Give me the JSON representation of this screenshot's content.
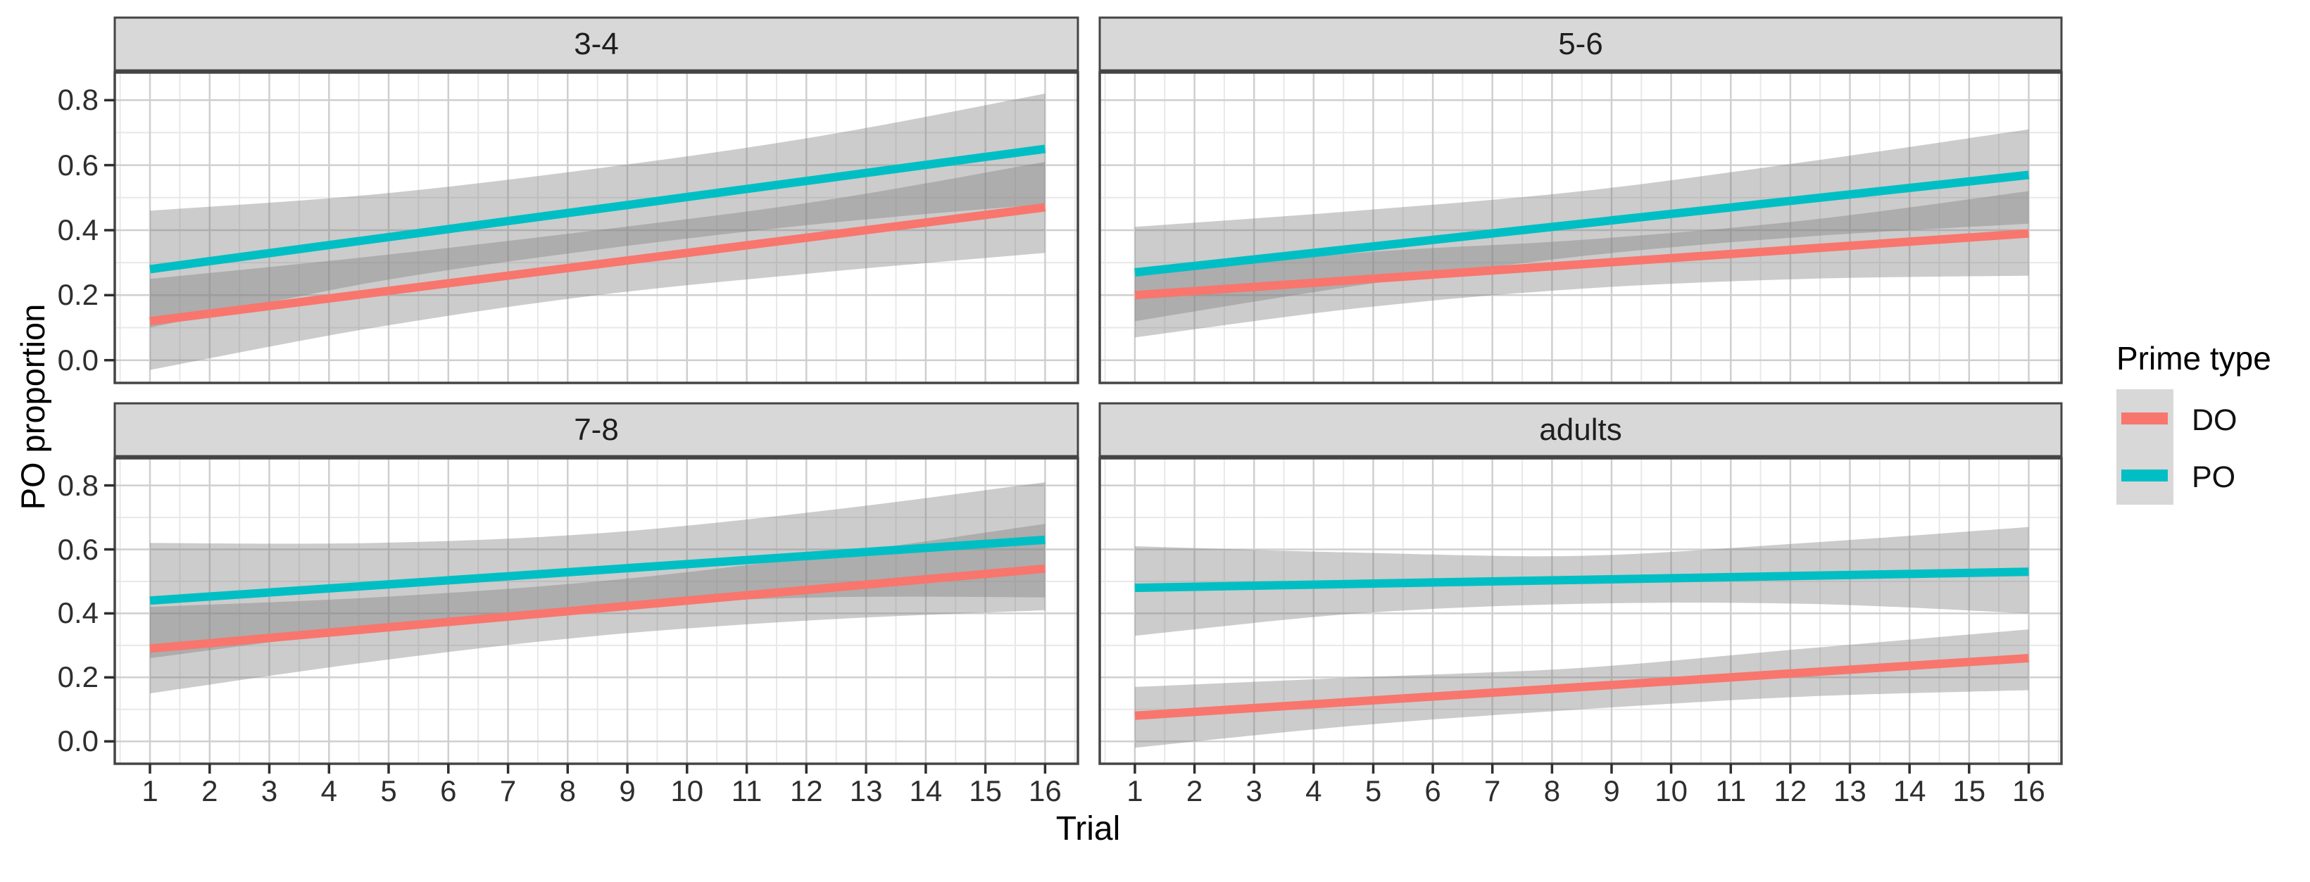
{
  "figure": {
    "y_axis_title": "PO proportion",
    "x_axis_title": "Trial",
    "legend": {
      "title": "Prime type",
      "entries": [
        {
          "label": "DO",
          "color": "#F8766D"
        },
        {
          "label": "PO",
          "color": "#00BFC4"
        }
      ]
    }
  },
  "chart_data": {
    "type": "line",
    "title": "",
    "xlabel": "Trial",
    "ylabel": "PO proportion",
    "legend_title": "Prime type",
    "legend_position": "right",
    "grid": "major+minor",
    "x_ticks": [
      1,
      2,
      3,
      4,
      5,
      6,
      7,
      8,
      9,
      10,
      11,
      12,
      13,
      14,
      15,
      16
    ],
    "y_ticks": [
      "0.0",
      "0.2",
      "0.4",
      "0.6",
      "0.8"
    ],
    "y_tick_values": [
      0.0,
      0.2,
      0.4,
      0.6,
      0.8
    ],
    "x_domain": [
      0.41,
      16.55
    ],
    "y_domain": [
      -0.07,
      0.885
    ],
    "ribbon_color": "#808080",
    "ribbon_opacity": 0.4,
    "panels": [
      {
        "label": "3-4",
        "series": [
          {
            "name": "DO",
            "line_x": [
              1,
              16
            ],
            "line_y": [
              0.12,
              0.47
            ],
            "ribbon_x": [
              1,
              4.75,
              8.5,
              12.25,
              16
            ],
            "ribbon_lo": [
              -0.03,
              0.1,
              0.2,
              0.27,
              0.33
            ],
            "ribbon_hi": [
              0.25,
              0.32,
              0.4,
              0.49,
              0.61
            ]
          },
          {
            "name": "PO",
            "line_x": [
              1,
              16
            ],
            "line_y": [
              0.28,
              0.65
            ],
            "ribbon_x": [
              1,
              4.75,
              8.5,
              12.25,
              16
            ],
            "ribbon_lo": [
              0.1,
              0.24,
              0.34,
              0.42,
              0.48
            ],
            "ribbon_hi": [
              0.46,
              0.51,
              0.59,
              0.69,
              0.82
            ]
          }
        ]
      },
      {
        "label": "5-6",
        "series": [
          {
            "name": "DO",
            "line_x": [
              1,
              16
            ],
            "line_y": [
              0.2,
              0.39
            ],
            "ribbon_x": [
              1,
              4.75,
              8.5,
              12.25,
              16
            ],
            "ribbon_lo": [
              0.07,
              0.16,
              0.22,
              0.25,
              0.26
            ],
            "ribbon_hi": [
              0.26,
              0.33,
              0.37,
              0.43,
              0.52
            ]
          },
          {
            "name": "PO",
            "line_x": [
              1,
              16
            ],
            "line_y": [
              0.27,
              0.57
            ],
            "ribbon_x": [
              1,
              4.75,
              8.5,
              12.25,
              16
            ],
            "ribbon_lo": [
              0.12,
              0.23,
              0.32,
              0.38,
              0.42
            ],
            "ribbon_hi": [
              0.41,
              0.46,
              0.52,
              0.61,
              0.71
            ]
          }
        ]
      },
      {
        "label": "7-8",
        "series": [
          {
            "name": "DO",
            "line_x": [
              1,
              16
            ],
            "line_y": [
              0.29,
              0.54
            ],
            "ribbon_x": [
              1,
              4.75,
              8.5,
              12.25,
              16
            ],
            "ribbon_lo": [
              0.15,
              0.25,
              0.33,
              0.38,
              0.41
            ],
            "ribbon_hi": [
              0.42,
              0.45,
              0.5,
              0.58,
              0.68
            ]
          },
          {
            "name": "PO",
            "line_x": [
              1,
              16
            ],
            "line_y": [
              0.44,
              0.63
            ],
            "ribbon_x": [
              1,
              4.75,
              8.5,
              12.25,
              16
            ],
            "ribbon_lo": [
              0.26,
              0.35,
              0.42,
              0.45,
              0.45
            ],
            "ribbon_hi": [
              0.62,
              0.62,
              0.65,
              0.72,
              0.81
            ]
          }
        ]
      },
      {
        "label": "adults",
        "series": [
          {
            "name": "DO",
            "line_x": [
              1,
              16
            ],
            "line_y": [
              0.08,
              0.26
            ],
            "ribbon_x": [
              1,
              4.75,
              8.5,
              12.25,
              16
            ],
            "ribbon_lo": [
              -0.02,
              0.05,
              0.1,
              0.14,
              0.16
            ],
            "ribbon_hi": [
              0.17,
              0.2,
              0.23,
              0.29,
              0.35
            ]
          },
          {
            "name": "PO",
            "line_x": [
              1,
              16
            ],
            "line_y": [
              0.48,
              0.53
            ],
            "ribbon_x": [
              1,
              4.75,
              8.5,
              12.25,
              16
            ],
            "ribbon_lo": [
              0.33,
              0.4,
              0.43,
              0.43,
              0.4
            ],
            "ribbon_hi": [
              0.61,
              0.59,
              0.58,
              0.62,
              0.67
            ]
          }
        ]
      }
    ]
  }
}
